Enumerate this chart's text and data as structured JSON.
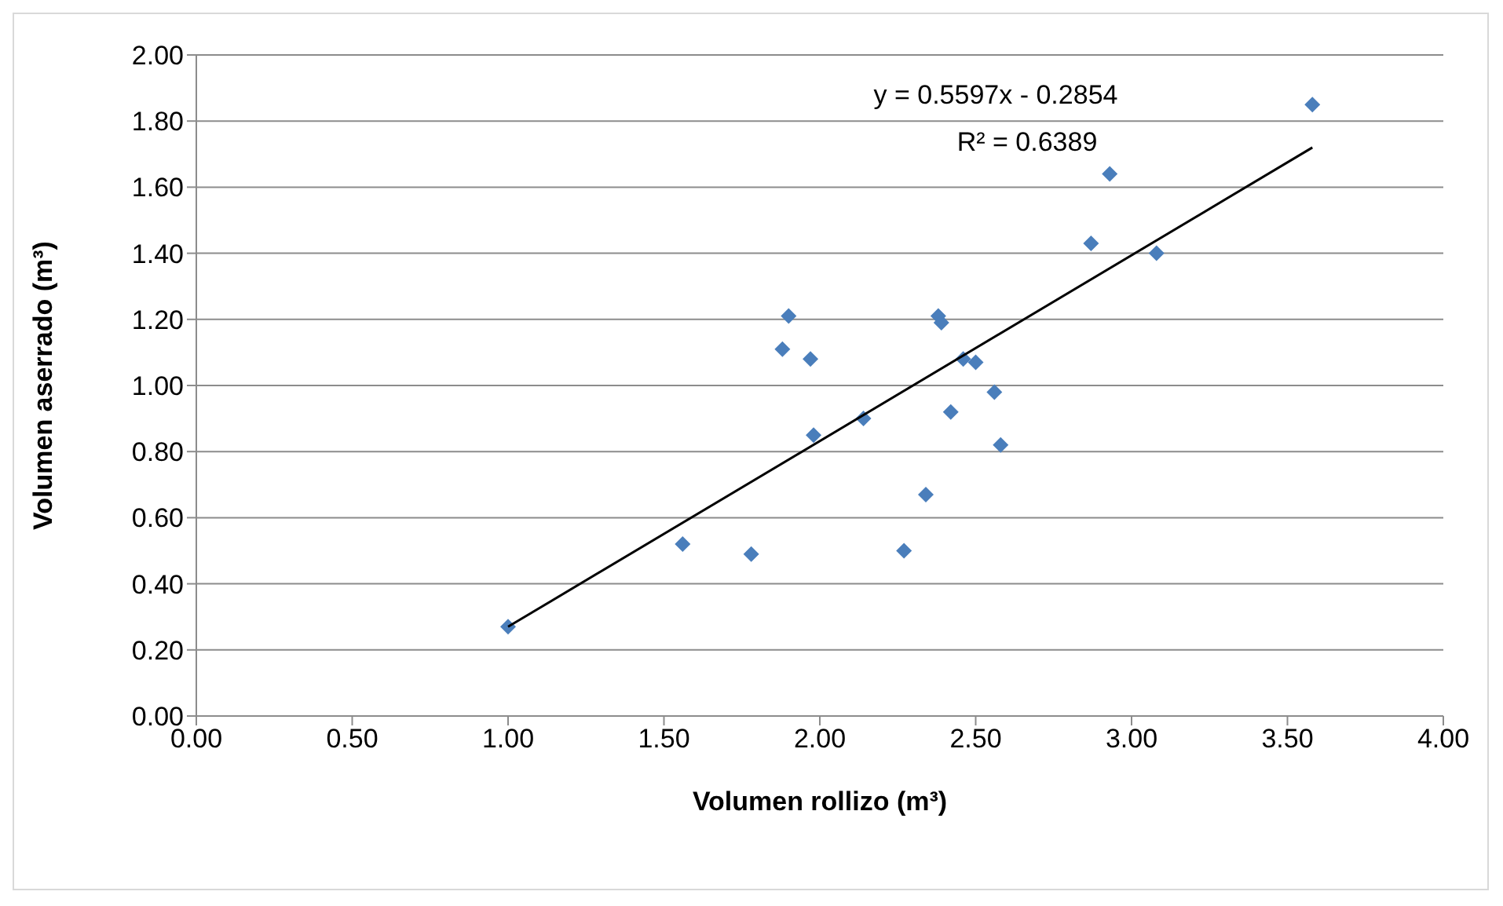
{
  "chart_data": {
    "type": "scatter",
    "xlabel": "Volumen rollizo (m³)",
    "ylabel": "Volumen aserrado (m³)",
    "annotations": [
      "y = 0.5597x - 0.2854",
      "R² = 0.6389"
    ],
    "series": [
      {
        "color": "#4a7ebb",
        "marker": "diamond",
        "x": [
          1.0,
          1.56,
          1.78,
          1.9,
          1.88,
          1.97,
          1.98,
          2.14,
          2.27,
          2.34,
          2.38,
          2.39,
          2.42,
          2.46,
          2.5,
          2.56,
          2.58,
          2.87,
          2.93,
          3.08,
          3.58
        ],
        "values": [
          0.27,
          0.52,
          0.49,
          1.21,
          1.11,
          1.08,
          0.85,
          0.9,
          0.5,
          0.67,
          1.21,
          1.19,
          0.92,
          1.08,
          1.07,
          0.98,
          0.82,
          1.43,
          1.64,
          1.4,
          1.85
        ]
      },
      {
        "type": "line",
        "color": "#000000",
        "marker": "none",
        "line_style": "solid",
        "x": [
          1.0,
          3.58
        ],
        "values": [
          0.27,
          1.72
        ]
      }
    ],
    "xlim": [
      0,
      4
    ],
    "xticks": [
      {
        "value": 0,
        "label": "0.00"
      },
      {
        "value": 0.5,
        "label": "0.50"
      },
      {
        "value": 1,
        "label": "1.00"
      },
      {
        "value": 1.5,
        "label": "1.50"
      },
      {
        "value": 2,
        "label": "2.00"
      },
      {
        "value": 2.5,
        "label": "2.50"
      },
      {
        "value": 3,
        "label": "3.00"
      },
      {
        "value": 3.5,
        "label": "3.50"
      },
      {
        "value": 4,
        "label": "4.00"
      }
    ],
    "ylim": [
      0,
      2
    ],
    "yticks": [
      {
        "value": 0,
        "label": "0.00"
      },
      {
        "value": 0.2,
        "label": "0.20"
      },
      {
        "value": 0.4,
        "label": "0.40"
      },
      {
        "value": 0.6,
        "label": "0.60"
      },
      {
        "value": 0.8,
        "label": "0.80"
      },
      {
        "value": 1,
        "label": "1.00"
      },
      {
        "value": 1.2,
        "label": "1.20"
      },
      {
        "value": 1.4,
        "label": "1.40"
      },
      {
        "value": 1.6,
        "label": "1.60"
      },
      {
        "value": 1.8,
        "label": "1.80"
      },
      {
        "value": 2,
        "label": "2.00"
      }
    ],
    "grid": "y",
    "legend": false
  }
}
